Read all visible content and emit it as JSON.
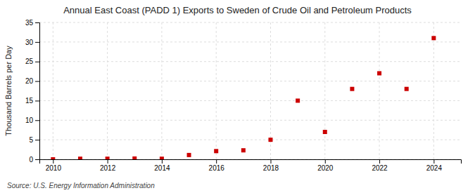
{
  "chart_data": {
    "type": "scatter",
    "title": "Annual East Coast (PADD 1) Exports to Sweden of Crude Oil and Petroleum Products",
    "y_label": "Thousand Barrels per Day",
    "annotations": [
      "Source: U.S. Energy Information Administration"
    ],
    "x": [
      2010,
      2011,
      2012,
      2013,
      2014,
      2015,
      2016,
      2017,
      2018,
      2019,
      2020,
      2021,
      2022,
      2023,
      2024
    ],
    "values": [
      0.0,
      0.15,
      0.15,
      0.2,
      0.15,
      1.1,
      2.1,
      2.3,
      5.0,
      15.0,
      7.0,
      18.0,
      22.0,
      18.0,
      31.0
    ],
    "color": "#cc0000",
    "marker": "square",
    "xlim": [
      2009.5,
      2025.0
    ],
    "xticks": [
      2010,
      2012,
      2014,
      2016,
      2018,
      2020,
      2022,
      2024
    ],
    "ylim": [
      0,
      35
    ],
    "yticks": [
      0,
      5,
      10,
      15,
      20,
      25,
      30,
      35
    ],
    "grid": true
  }
}
